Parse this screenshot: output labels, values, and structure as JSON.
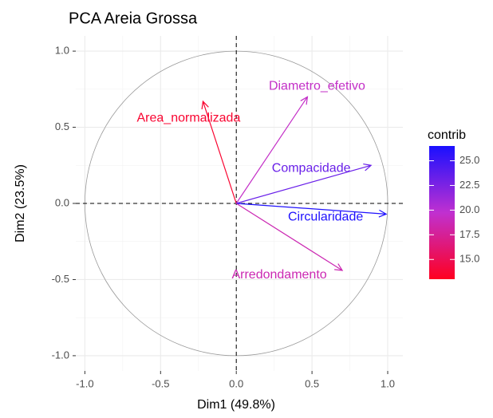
{
  "chart_data": {
    "type": "pca_variables",
    "title": "PCA Areia Grossa",
    "x_label": "Dim1 (49.8%)",
    "y_label": "Dim2 (23.5%)",
    "legend_title": "contrib",
    "categories": [
      "Area_normalizada",
      "Diametro_efetivo",
      "Compacidade",
      "Circularidade",
      "Arredondamento"
    ],
    "x": [
      -0.22,
      0.47,
      0.89,
      0.99,
      0.7
    ],
    "values": [
      0.67,
      0.7,
      0.25,
      -0.07,
      -0.44
    ],
    "contrib": [
      13.6,
      19.4,
      23.3,
      26.3,
      18.6
    ],
    "gradient": [
      "#ff0020",
      "#c030d0",
      "#1a10ff"
    ],
    "clim": [
      13.0,
      26.5
    ],
    "cticks": [
      {
        "value": 15,
        "label": "15.0"
      },
      17.5,
      {
        "value": 20,
        "label": "20.0"
      },
      22.5,
      {
        "value": 25,
        "label": "25.0"
      }
    ],
    "xlim": [
      -1.06,
      1.1
    ],
    "ylim": [
      -1.1,
      1.1
    ],
    "xticks": [
      {
        "value": -1,
        "label": "-1.0"
      },
      -0.5,
      {
        "value": 0,
        "label": "0.0"
      },
      0.5,
      {
        "value": 1,
        "label": "1.0"
      }
    ],
    "yticks": [
      {
        "value": -1,
        "label": "-1.0"
      },
      -0.5,
      {
        "value": 0,
        "label": "0.0"
      },
      0.5,
      {
        "value": 1,
        "label": "1.0"
      }
    ],
    "grid": true
  }
}
